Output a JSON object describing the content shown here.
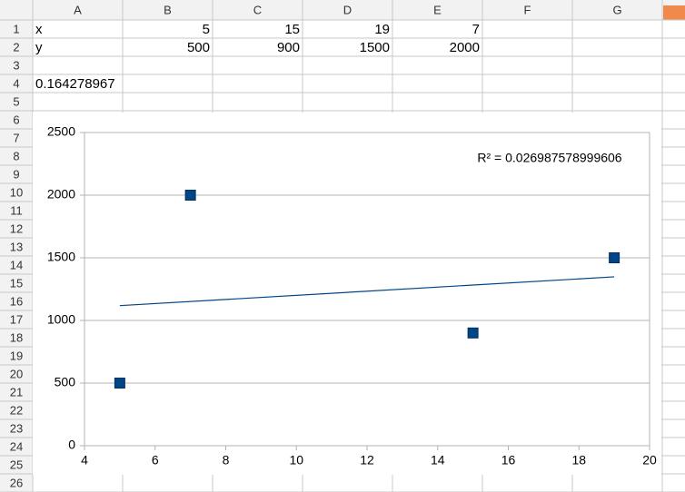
{
  "spreadsheet": {
    "columns": [
      "A",
      "B",
      "C",
      "D",
      "E",
      "F",
      "G"
    ],
    "rows": [
      1,
      2,
      3,
      4,
      5,
      6,
      7,
      8,
      9,
      10,
      11,
      12,
      13,
      14,
      15,
      16,
      17,
      18,
      19,
      20,
      21,
      22,
      23,
      24,
      25,
      26
    ],
    "cells": [
      [
        "x",
        5,
        15,
        19,
        7
      ],
      [
        "y",
        500,
        900,
        1500,
        2000
      ],
      [],
      [
        0.164278967
      ]
    ]
  },
  "chart_data": {
    "type": "scatter",
    "x": [
      5,
      15,
      19,
      7
    ],
    "values": [
      500,
      900,
      1500,
      2000
    ],
    "color": "#004586",
    "xlim": [
      4,
      20
    ],
    "xticks": [
      4,
      6,
      8,
      10,
      12,
      14,
      16,
      18,
      20
    ],
    "ylim": [
      0,
      2500
    ],
    "yticks": [
      0,
      500,
      1000,
      1500,
      2000,
      2500
    ],
    "grid": true,
    "trendline": "linear",
    "annotation": "R² = 0.026987578999606"
  }
}
